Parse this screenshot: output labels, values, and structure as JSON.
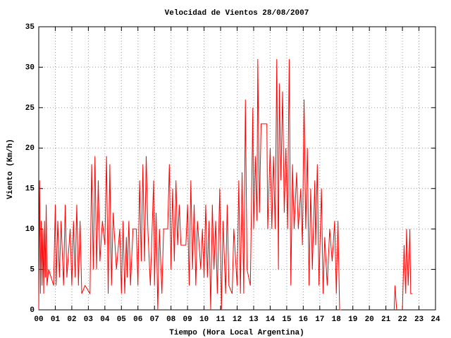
{
  "chart_data": {
    "type": "line",
    "title": "Velocidad de Vientos 28/08/2007",
    "x_label": "Tiempo (Hora Local Argentina)",
    "y_label": "Viento (Km/h)",
    "xlim": [
      0,
      24
    ],
    "ylim": [
      0,
      35
    ],
    "xticks": [
      {
        "value": 0,
        "label": "00"
      },
      {
        "value": 1,
        "label": "01"
      },
      {
        "value": 2,
        "label": "02"
      },
      {
        "value": 3,
        "label": "03"
      },
      {
        "value": 4,
        "label": "04"
      },
      {
        "value": 5,
        "label": "05"
      },
      {
        "value": 6,
        "label": "06"
      },
      {
        "value": 7,
        "label": "07"
      },
      {
        "value": 8,
        "label": "08"
      },
      {
        "value": 9,
        "label": "09"
      },
      10,
      11,
      12,
      13,
      14,
      15,
      16,
      17,
      18,
      19,
      20,
      21,
      22,
      23,
      24
    ],
    "yticks": [
      0,
      5,
      10,
      15,
      20,
      25,
      30,
      35
    ],
    "grid": true,
    "color": "#ff0000",
    "x": [
      0.0,
      0.05,
      0.1,
      0.15,
      0.2,
      0.25,
      0.3,
      0.35,
      0.4,
      0.45,
      0.5,
      0.6,
      0.9,
      1.0,
      1.05,
      1.15,
      1.25,
      1.35,
      1.5,
      1.6,
      1.7,
      1.9,
      2.0,
      2.1,
      2.2,
      2.3,
      2.4,
      2.5,
      2.6,
      2.8,
      3.1,
      3.2,
      3.3,
      3.4,
      3.5,
      3.6,
      3.7,
      3.85,
      4.0,
      4.1,
      4.2,
      4.3,
      4.4,
      4.5,
      4.7,
      4.9,
      5.0,
      5.1,
      5.2,
      5.3,
      5.35,
      5.45,
      5.55,
      5.7,
      5.9,
      6.0,
      6.1,
      6.2,
      6.3,
      6.4,
      6.5,
      6.6,
      6.75,
      6.95,
      7.0,
      7.1,
      7.2,
      7.3,
      7.45,
      7.55,
      7.8,
      7.9,
      8.0,
      8.1,
      8.2,
      8.3,
      8.4,
      8.5,
      8.6,
      8.9,
      9.0,
      9.1,
      9.2,
      9.3,
      9.4,
      9.5,
      9.6,
      9.8,
      9.9,
      10.0,
      10.1,
      10.2,
      10.3,
      10.4,
      10.5,
      10.6,
      10.7,
      10.8,
      10.95,
      11.05,
      11.15,
      11.3,
      11.4,
      11.5,
      11.7,
      11.8,
      12.0,
      12.1,
      12.2,
      12.3,
      12.4,
      12.5,
      12.6,
      12.8,
      12.95,
      13.0,
      13.1,
      13.2,
      13.25,
      13.35,
      13.45,
      13.8,
      13.85,
      14.0,
      14.1,
      14.2,
      14.3,
      14.4,
      14.5,
      14.55,
      14.65,
      14.75,
      14.85,
      14.95,
      15.05,
      15.15,
      15.25,
      15.35,
      15.45,
      15.6,
      15.7,
      15.85,
      15.95,
      16.05,
      16.15,
      16.25,
      16.35,
      16.45,
      16.55,
      16.7,
      16.75,
      16.85,
      16.95,
      17.1,
      17.2,
      17.3,
      17.45,
      17.6,
      17.75,
      17.9,
      18.0,
      18.1,
      18.2,
      18.3,
      null,
      21.5,
      21.55,
      21.65,
      null,
      22.0,
      22.1,
      22.2,
      22.25,
      22.35,
      22.45,
      22.5,
      22.6
    ],
    "values": [
      0,
      16,
      2,
      11,
      3,
      10,
      2,
      11,
      4,
      13,
      3,
      5,
      3,
      13,
      3,
      11,
      4,
      11,
      3,
      13,
      4,
      10,
      3,
      11,
      4,
      13,
      3,
      11,
      2,
      3,
      2,
      18,
      5,
      19,
      5,
      16,
      6,
      11,
      8,
      19,
      2,
      18,
      3,
      12,
      5,
      10,
      2,
      11,
      2,
      9,
      4,
      11,
      3,
      10,
      10,
      3,
      16,
      6,
      18,
      6,
      19,
      10,
      3,
      16,
      3,
      12,
      0,
      10,
      2,
      10,
      10,
      18,
      5,
      15,
      6,
      16,
      8,
      13,
      8,
      8,
      13,
      3,
      16,
      5,
      13,
      3,
      11,
      5,
      10,
      4,
      13,
      4,
      11,
      0,
      13,
      5,
      11,
      2,
      15,
      0,
      11,
      2,
      13,
      3,
      2,
      10,
      3,
      16,
      2,
      17,
      2,
      26,
      5,
      3,
      25,
      10,
      19,
      11,
      31,
      12,
      23,
      23,
      10,
      20,
      10,
      19,
      10,
      31,
      5,
      28,
      16,
      27,
      12,
      20,
      10,
      31,
      3,
      18,
      10,
      17,
      10,
      15,
      8,
      26,
      10,
      20,
      3,
      15,
      5,
      16,
      8,
      18,
      3,
      15,
      2,
      9,
      3,
      10,
      6,
      11,
      2,
      11,
      0,
      0,
      null,
      0,
      3,
      0,
      null,
      0,
      8,
      2,
      10,
      3,
      10,
      2,
      2
    ]
  }
}
